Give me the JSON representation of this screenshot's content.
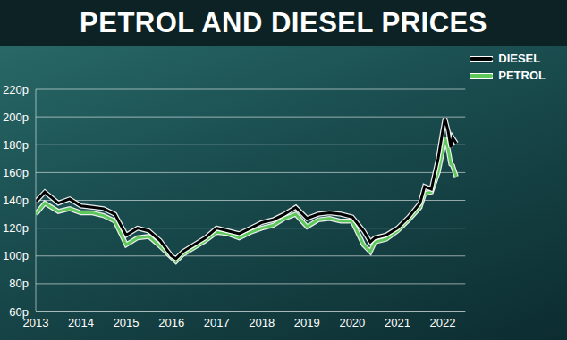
{
  "chart_data": {
    "type": "line",
    "title": "PETROL AND DIESEL PRICES",
    "x": [
      2013.0,
      2013.2,
      2013.5,
      2013.75,
      2014.0,
      2014.25,
      2014.5,
      2014.75,
      2015.0,
      2015.25,
      2015.5,
      2015.75,
      2016.0,
      2016.1,
      2016.25,
      2016.5,
      2016.75,
      2017.0,
      2017.25,
      2017.5,
      2017.75,
      2018.0,
      2018.25,
      2018.5,
      2018.75,
      2019.0,
      2019.25,
      2019.5,
      2019.75,
      2020.0,
      2020.25,
      2020.4,
      2020.5,
      2020.75,
      2021.0,
      2021.25,
      2021.5,
      2021.6,
      2021.75,
      2021.9,
      2022.0,
      2022.05,
      2022.12,
      2022.18,
      2022.22,
      2022.3
    ],
    "series": [
      {
        "name": "DIESEL",
        "color": "#000000",
        "values": [
          139,
          146,
          138,
          141,
          136,
          135,
          134,
          130,
          115,
          120,
          118,
          111,
          100,
          98,
          103,
          108,
          113,
          120,
          118,
          116,
          120,
          124,
          126,
          130,
          135,
          127,
          130,
          131,
          130,
          128,
          118,
          110,
          113,
          115,
          120,
          128,
          138,
          150,
          148,
          170,
          190,
          199,
          190,
          178,
          185,
          181
        ]
      },
      {
        "name": "PETROL",
        "color": "#5ec85a",
        "values": [
          130,
          138,
          132,
          134,
          131,
          131,
          129,
          125,
          108,
          113,
          114,
          107,
          99,
          96,
          101,
          106,
          111,
          117,
          116,
          113,
          117,
          120,
          122,
          127,
          130,
          121,
          126,
          127,
          125,
          125,
          108,
          103,
          110,
          112,
          118,
          126,
          135,
          145,
          146,
          160,
          176,
          185,
          177,
          166,
          165,
          157
        ]
      }
    ],
    "xlim": [
      2013,
      2022.5
    ],
    "xticks": [
      2013,
      2014,
      2015,
      2016,
      2017,
      2018,
      2019,
      2020,
      2021,
      2022
    ],
    "ylim": [
      60,
      220
    ],
    "yticks": [
      {
        "value": 60,
        "label": "60p"
      },
      {
        "value": 80,
        "label": "80p"
      },
      {
        "value": 100,
        "label": "100p"
      },
      {
        "value": 120,
        "label": "120p"
      },
      {
        "value": 140,
        "label": "140p"
      },
      {
        "value": 160,
        "label": "160p"
      },
      {
        "value": 180,
        "label": "180p"
      },
      {
        "value": 200,
        "label": "200p"
      },
      {
        "value": 220,
        "label": "220p"
      }
    ],
    "grid": true,
    "legend": "top-right"
  }
}
